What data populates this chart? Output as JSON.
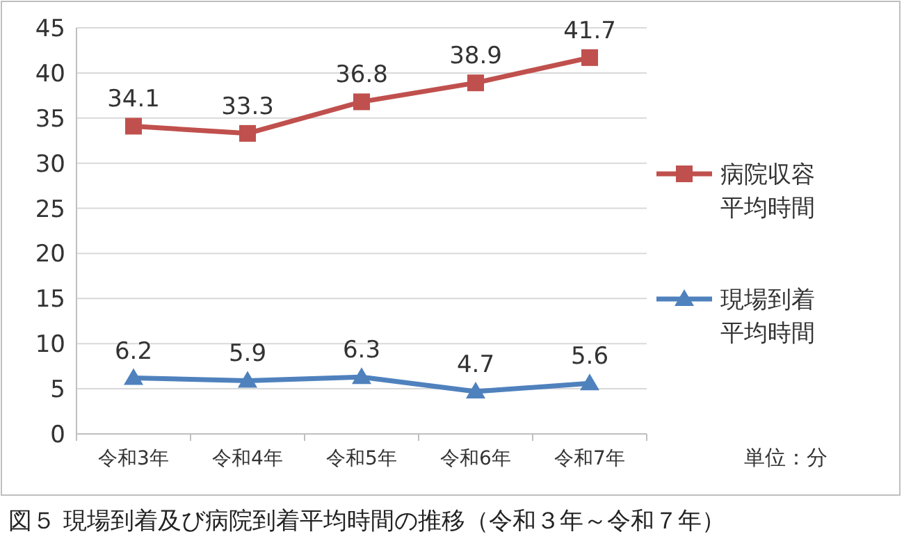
{
  "chart_data": {
    "type": "line",
    "categories": [
      "令和3年",
      "令和4年",
      "令和5年",
      "令和6年",
      "令和7年"
    ],
    "series": [
      {
        "name": "病院収容平均時間",
        "color": "#c0504d",
        "marker": "square",
        "values": [
          34.1,
          33.3,
          36.8,
          38.9,
          41.7
        ]
      },
      {
        "name": "現場到着平均時間",
        "color": "#4f81bd",
        "marker": "triangle",
        "values": [
          6.2,
          5.9,
          6.3,
          4.7,
          5.6
        ]
      }
    ],
    "ylim": [
      0,
      45
    ],
    "yticks": [
      0,
      5,
      10,
      15,
      20,
      25,
      30,
      35,
      40,
      45
    ],
    "grid": "y",
    "legend": "right",
    "data_labels": true,
    "annotations": [
      "単位：分",
      "図５ 現場到着及び病院到着平均時間の推移（令和３年～令和７年）"
    ]
  }
}
